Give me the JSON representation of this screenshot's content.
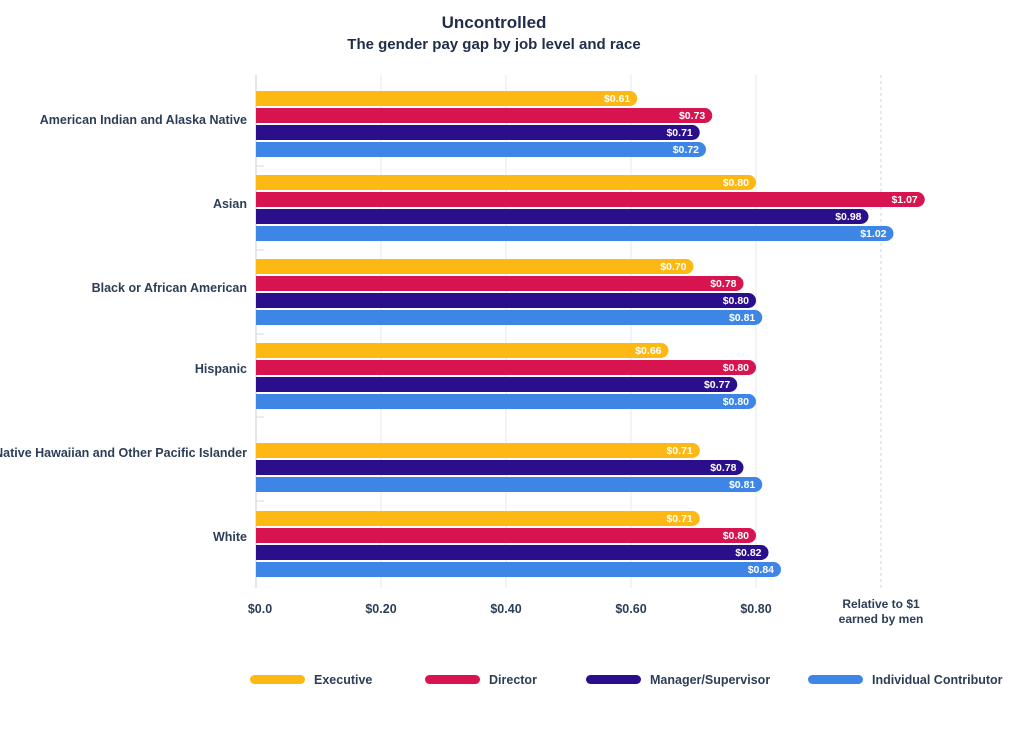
{
  "chart_data": {
    "type": "bar",
    "orientation": "horizontal",
    "title": "Uncontrolled",
    "subtitle": "The gender pay gap by job level and race",
    "xlabel": "Relative to $1 earned by men",
    "xlabel_lines": [
      "Relative to $1",
      "earned by men"
    ],
    "xlim": [
      0,
      1.0
    ],
    "x_ticks": [
      0,
      0.2,
      0.4,
      0.6,
      0.8
    ],
    "x_tick_labels": [
      "$0.0",
      "$0.20",
      "$0.40",
      "$0.60",
      "$0.80"
    ],
    "reference_line": 1.0,
    "legend_position": "bottom",
    "series": [
      {
        "name": "Executive",
        "color": "#FDB813"
      },
      {
        "name": "Director",
        "color": "#D7144F"
      },
      {
        "name": "Manager/Supervisor",
        "color": "#2B0E8C"
      },
      {
        "name": "Individual Contributor",
        "color": "#3D86E6"
      }
    ],
    "categories": [
      {
        "label": "American Indian and Alaska Native",
        "bars": [
          {
            "series": "Executive",
            "value": 0.61,
            "text": "$0.61"
          },
          {
            "series": "Director",
            "value": 0.73,
            "text": "$0.73"
          },
          {
            "series": "Manager/Supervisor",
            "value": 0.71,
            "text": "$0.71"
          },
          {
            "series": "Individual Contributor",
            "value": 0.72,
            "text": "$0.72"
          }
        ]
      },
      {
        "label": "Asian",
        "bars": [
          {
            "series": "Executive",
            "value": 0.8,
            "text": "$0.80"
          },
          {
            "series": "Director",
            "value": 1.07,
            "text": "$1.07"
          },
          {
            "series": "Manager/Supervisor",
            "value": 0.98,
            "text": "$0.98"
          },
          {
            "series": "Individual Contributor",
            "value": 1.02,
            "text": "$1.02"
          }
        ]
      },
      {
        "label": "Black or African American",
        "bars": [
          {
            "series": "Executive",
            "value": 0.7,
            "text": "$0.70"
          },
          {
            "series": "Director",
            "value": 0.78,
            "text": "$0.78"
          },
          {
            "series": "Manager/Supervisor",
            "value": 0.8,
            "text": "$0.80"
          },
          {
            "series": "Individual Contributor",
            "value": 0.81,
            "text": "$0.81"
          }
        ]
      },
      {
        "label": "Hispanic",
        "bars": [
          {
            "series": "Executive",
            "value": 0.66,
            "text": "$0.66"
          },
          {
            "series": "Director",
            "value": 0.8,
            "text": "$0.80"
          },
          {
            "series": "Manager/Supervisor",
            "value": 0.77,
            "text": "$0.77"
          },
          {
            "series": "Individual Contributor",
            "value": 0.8,
            "text": "$0.80"
          }
        ]
      },
      {
        "label": "Native Hawaiian and Other Pacific Islander",
        "bars": [
          {
            "series": "Executive",
            "value": 0.71,
            "text": "$0.71"
          },
          {
            "series": "Manager/Supervisor",
            "value": 0.78,
            "text": "$0.78"
          },
          {
            "series": "Individual Contributor",
            "value": 0.81,
            "text": "$0.81"
          }
        ]
      },
      {
        "label": "White",
        "bars": [
          {
            "series": "Executive",
            "value": 0.71,
            "text": "$0.71"
          },
          {
            "series": "Director",
            "value": 0.8,
            "text": "$0.80"
          },
          {
            "series": "Manager/Supervisor",
            "value": 0.82,
            "text": "$0.82"
          },
          {
            "series": "Individual Contributor",
            "value": 0.84,
            "text": "$0.84"
          }
        ]
      }
    ]
  }
}
